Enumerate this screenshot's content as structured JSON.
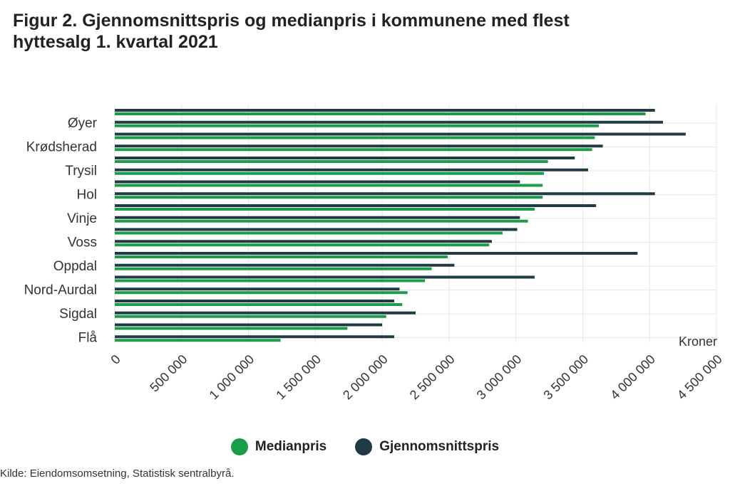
{
  "title_line1": "Figur 2. Gjennomsnittspris og medianpris i kommunene med flest",
  "title_line2": "hyttesalg 1. kvartal 2021",
  "source": "Kilde: Eiendomsomsetning, Statistisk sentralbyrå.",
  "colors": {
    "median": "#1a9d49",
    "avg": "#1f3b44",
    "grid": "#e6e6e6"
  },
  "chart_data": {
    "type": "bar",
    "orientation": "horizontal",
    "xlabel": "Kroner",
    "xlim": [
      0,
      4500000
    ],
    "xticks": [
      0,
      500000,
      1000000,
      1500000,
      2000000,
      2500000,
      3000000,
      3500000,
      4000000,
      4500000
    ],
    "xtick_labels": [
      "0",
      "500 000",
      "1 000 000",
      "1 500 000",
      "2 000 000",
      "2 500 000",
      "3 000 000",
      "3 500 000",
      "4 000 000",
      "4 500 000"
    ],
    "grid": true,
    "legend_position": "bottom",
    "categories": [
      "",
      "Øyer",
      "",
      "Krødsherad",
      "",
      "Trysil",
      "",
      "Hol",
      "",
      "Vinje",
      "",
      "Voss",
      "",
      "Oppdal",
      "",
      "Nord-Aurdal",
      "",
      "Sigdal",
      "",
      "Flå"
    ],
    "series": [
      {
        "name": "Gjennomsnittspris",
        "key": "avg",
        "values": [
          4040000,
          4100000,
          4270000,
          3650000,
          3440000,
          3540000,
          3030000,
          4040000,
          3600000,
          3030000,
          3010000,
          2820000,
          3910000,
          2540000,
          3140000,
          2130000,
          2090000,
          2250000,
          2000000,
          2090000
        ]
      },
      {
        "name": "Medianpris",
        "key": "median",
        "values": [
          3970000,
          3620000,
          3590000,
          3570000,
          3240000,
          3210000,
          3200000,
          3200000,
          3140000,
          3090000,
          2900000,
          2800000,
          2490000,
          2370000,
          2320000,
          2190000,
          2150000,
          2030000,
          1740000,
          1240000
        ]
      }
    ]
  }
}
